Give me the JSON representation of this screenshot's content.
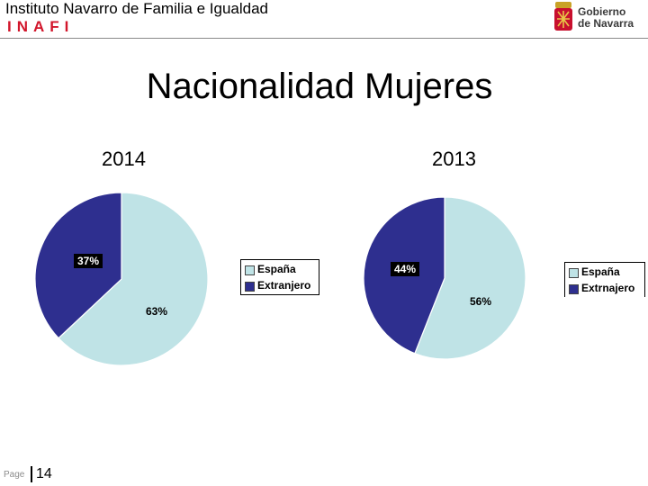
{
  "header": {
    "org_name": "Instituto Navarro de Familia e Igualdad",
    "acronym": "INAFI",
    "logo_text_line1": "Gobierno",
    "logo_text_line2": "de Navarra"
  },
  "title": "Nacionalidad Mujeres",
  "footer": {
    "page_label": "Page",
    "page_number": "14"
  },
  "colors": {
    "espana": "#bfe3e6",
    "extranjero": "#2e2f8f",
    "accent": "#d2162b"
  },
  "chart_data": [
    {
      "type": "pie",
      "title": "2014",
      "categories": [
        "España",
        "Extranjero"
      ],
      "values": [
        63,
        37
      ],
      "data_labels": [
        "63%",
        "37%"
      ],
      "legend": [
        "España",
        "Extranjero"
      ],
      "legend_position": "right"
    },
    {
      "type": "pie",
      "title": "2013",
      "categories": [
        "España",
        "Extrnajero"
      ],
      "values": [
        56,
        44
      ],
      "data_labels": [
        "56%",
        "44%"
      ],
      "legend": [
        "España",
        "Extrnajero"
      ],
      "legend_position": "right"
    }
  ]
}
